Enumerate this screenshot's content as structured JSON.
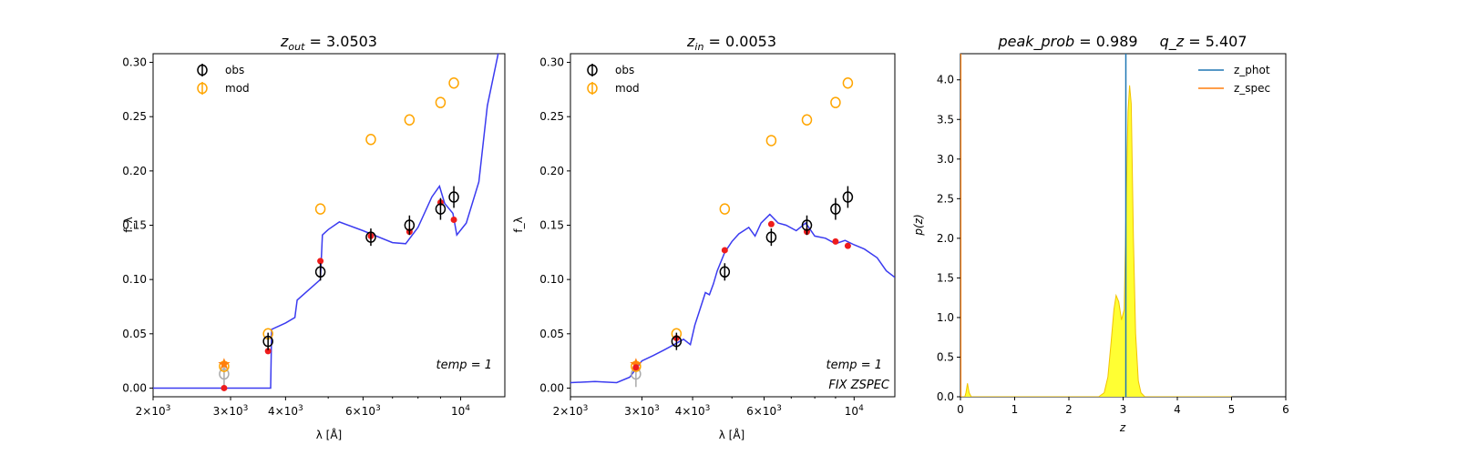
{
  "colors": {
    "model_curve": "#3b3bf0",
    "obs": "#000000",
    "mod": "#ffa500",
    "model_points": "#ee1c1c",
    "zphot_line": "#1f77b4",
    "zspec_line": "#ff7f0e",
    "pz_fill": "#ffff33",
    "upper_limit": "#aaaaaa"
  },
  "chart_data": [
    {
      "type": "scatter",
      "panel": "sed-left",
      "title_prefix": "z",
      "title_sub": "out",
      "title_rest": " = 3.0503",
      "xlabel": "λ [Å]",
      "ylabel": "f_λ",
      "x_scale": "log",
      "xlim": [
        2000,
        12600
      ],
      "ylim": [
        -0.008,
        0.308
      ],
      "xticks": [
        {
          "value": 2000,
          "mant": "2×10",
          "exp": "3"
        },
        {
          "value": 3000,
          "mant": "3×10",
          "exp": "3"
        },
        {
          "value": 4000,
          "mant": "4×10",
          "exp": "3"
        },
        {
          "value": 6000,
          "mant": "6×10",
          "exp": "3"
        },
        {
          "value": 10000,
          "mant": "10",
          "exp": "4"
        }
      ],
      "yticks": [
        "0.00",
        "0.05",
        "0.10",
        "0.15",
        "0.20",
        "0.25",
        "0.30"
      ],
      "legend": [
        "obs",
        "mod"
      ],
      "annotations": [
        "temp = 1"
      ],
      "obs": [
        {
          "x": 3650,
          "y": 0.043,
          "err": 0.008
        },
        {
          "x": 4800,
          "y": 0.107,
          "err": 0.008
        },
        {
          "x": 6250,
          "y": 0.139,
          "err": 0.008
        },
        {
          "x": 7650,
          "y": 0.15,
          "err": 0.009
        },
        {
          "x": 9000,
          "y": 0.165,
          "err": 0.01
        },
        {
          "x": 9650,
          "y": 0.176,
          "err": 0.01
        }
      ],
      "upper_limit": {
        "x": 2900,
        "y": 0.013,
        "err": 0.012
      },
      "mod": [
        {
          "x": 2900,
          "y": 0.02
        },
        {
          "x": 3650,
          "y": 0.05
        },
        {
          "x": 4800,
          "y": 0.165
        },
        {
          "x": 6250,
          "y": 0.229
        },
        {
          "x": 7650,
          "y": 0.247
        },
        {
          "x": 9000,
          "y": 0.263
        },
        {
          "x": 9650,
          "y": 0.281
        }
      ],
      "mod_star": {
        "x": 2900,
        "y": 0.022
      },
      "model_points": [
        {
          "x": 2900,
          "y": 0.0
        },
        {
          "x": 3650,
          "y": 0.034
        },
        {
          "x": 4800,
          "y": 0.117
        },
        {
          "x": 6250,
          "y": 0.14
        },
        {
          "x": 7650,
          "y": 0.144
        },
        {
          "x": 9000,
          "y": 0.171
        },
        {
          "x": 9650,
          "y": 0.155
        }
      ],
      "curve": [
        [
          2000,
          0.0
        ],
        [
          3500,
          0.0
        ],
        [
          3700,
          0.0
        ],
        [
          3720,
          0.054
        ],
        [
          4000,
          0.06
        ],
        [
          4200,
          0.065
        ],
        [
          4250,
          0.081
        ],
        [
          4800,
          0.1
        ],
        [
          4850,
          0.141
        ],
        [
          5000,
          0.146
        ],
        [
          5300,
          0.153
        ],
        [
          6000,
          0.145
        ],
        [
          7000,
          0.134
        ],
        [
          7500,
          0.133
        ],
        [
          8000,
          0.148
        ],
        [
          8600,
          0.176
        ],
        [
          8950,
          0.186
        ],
        [
          9200,
          0.17
        ],
        [
          9600,
          0.161
        ],
        [
          9800,
          0.141
        ],
        [
          10300,
          0.152
        ],
        [
          11000,
          0.19
        ],
        [
          11500,
          0.26
        ],
        [
          12200,
          0.31
        ]
      ]
    },
    {
      "type": "scatter",
      "panel": "sed-middle",
      "title_prefix": "z",
      "title_sub": "in",
      "title_rest": " = 0.0053",
      "xlabel": "λ [Å]",
      "ylabel": "f_λ",
      "x_scale": "log",
      "xlim": [
        2000,
        12600
      ],
      "ylim": [
        -0.008,
        0.308
      ],
      "xticks": [
        {
          "value": 2000,
          "mant": "2×10",
          "exp": "3"
        },
        {
          "value": 3000,
          "mant": "3×10",
          "exp": "3"
        },
        {
          "value": 4000,
          "mant": "4×10",
          "exp": "3"
        },
        {
          "value": 6000,
          "mant": "6×10",
          "exp": "3"
        },
        {
          "value": 10000,
          "mant": "10",
          "exp": "4"
        }
      ],
      "yticks": [
        "0.00",
        "0.05",
        "0.10",
        "0.15",
        "0.20",
        "0.25",
        "0.30"
      ],
      "legend": [
        "obs",
        "mod"
      ],
      "annotations": [
        "temp = 1",
        "FIX ZSPEC"
      ],
      "obs": [
        {
          "x": 3650,
          "y": 0.043,
          "err": 0.008
        },
        {
          "x": 4800,
          "y": 0.107,
          "err": 0.008
        },
        {
          "x": 6250,
          "y": 0.139,
          "err": 0.008
        },
        {
          "x": 7650,
          "y": 0.15,
          "err": 0.009
        },
        {
          "x": 9000,
          "y": 0.165,
          "err": 0.01
        },
        {
          "x": 9650,
          "y": 0.176,
          "err": 0.01
        }
      ],
      "upper_limit": {
        "x": 2900,
        "y": 0.013,
        "err": 0.012
      },
      "mod": [
        {
          "x": 2900,
          "y": 0.02
        },
        {
          "x": 3650,
          "y": 0.05
        },
        {
          "x": 4800,
          "y": 0.165
        },
        {
          "x": 6250,
          "y": 0.228
        },
        {
          "x": 7650,
          "y": 0.247
        },
        {
          "x": 9000,
          "y": 0.263
        },
        {
          "x": 9650,
          "y": 0.281
        }
      ],
      "mod_star": {
        "x": 2900,
        "y": 0.022
      },
      "model_points": [
        {
          "x": 2900,
          "y": 0.019
        },
        {
          "x": 3650,
          "y": 0.046
        },
        {
          "x": 4800,
          "y": 0.127
        },
        {
          "x": 6250,
          "y": 0.151
        },
        {
          "x": 7650,
          "y": 0.144
        },
        {
          "x": 9000,
          "y": 0.135
        },
        {
          "x": 9650,
          "y": 0.131
        }
      ],
      "curve": [
        [
          2000,
          0.005
        ],
        [
          2300,
          0.006
        ],
        [
          2600,
          0.005
        ],
        [
          2800,
          0.01
        ],
        [
          3000,
          0.025
        ],
        [
          3200,
          0.03
        ],
        [
          3400,
          0.035
        ],
        [
          3600,
          0.04
        ],
        [
          3800,
          0.045
        ],
        [
          3950,
          0.04
        ],
        [
          4050,
          0.058
        ],
        [
          4150,
          0.07
        ],
        [
          4300,
          0.088
        ],
        [
          4400,
          0.086
        ],
        [
          4500,
          0.096
        ],
        [
          4600,
          0.108
        ],
        [
          4800,
          0.125
        ],
        [
          5000,
          0.135
        ],
        [
          5200,
          0.142
        ],
        [
          5500,
          0.148
        ],
        [
          5700,
          0.14
        ],
        [
          5900,
          0.152
        ],
        [
          6200,
          0.16
        ],
        [
          6500,
          0.152
        ],
        [
          6800,
          0.15
        ],
        [
          7200,
          0.145
        ],
        [
          7600,
          0.152
        ],
        [
          8000,
          0.14
        ],
        [
          8500,
          0.138
        ],
        [
          9000,
          0.133
        ],
        [
          9500,
          0.136
        ],
        [
          10000,
          0.132
        ],
        [
          10600,
          0.128
        ],
        [
          11400,
          0.12
        ],
        [
          12000,
          0.108
        ],
        [
          12600,
          0.102
        ]
      ]
    },
    {
      "type": "area",
      "panel": "pz",
      "title_a": "peak_prob",
      "title_a_rest": " = 0.989",
      "title_b": "q_z",
      "title_b_rest": " = 5.407",
      "xlabel": "z",
      "ylabel": "p(z)",
      "xlim": [
        0,
        6
      ],
      "ylim": [
        0,
        4.33
      ],
      "xticks": [
        "0",
        "1",
        "2",
        "3",
        "4",
        "5",
        "6"
      ],
      "yticks": [
        "0.0",
        "0.5",
        "1.0",
        "1.5",
        "2.0",
        "2.5",
        "3.0",
        "3.5",
        "4.0"
      ],
      "legend": [
        "z_phot",
        "z_spec"
      ],
      "z_phot": 3.0503,
      "z_spec": 0.0053,
      "pz": [
        [
          0.0,
          0.0
        ],
        [
          0.08,
          0.0
        ],
        [
          0.1,
          0.05
        ],
        [
          0.13,
          0.17
        ],
        [
          0.16,
          0.05
        ],
        [
          0.2,
          0.0
        ],
        [
          2.55,
          0.0
        ],
        [
          2.65,
          0.05
        ],
        [
          2.72,
          0.25
        ],
        [
          2.78,
          0.7
        ],
        [
          2.83,
          1.1
        ],
        [
          2.87,
          1.28
        ],
        [
          2.92,
          1.2
        ],
        [
          2.97,
          0.97
        ],
        [
          3.02,
          1.1
        ],
        [
          3.06,
          2.6
        ],
        [
          3.09,
          3.6
        ],
        [
          3.12,
          3.93
        ],
        [
          3.15,
          3.7
        ],
        [
          3.19,
          2.0
        ],
        [
          3.23,
          0.8
        ],
        [
          3.28,
          0.2
        ],
        [
          3.33,
          0.05
        ],
        [
          3.4,
          0.0
        ],
        [
          5.0,
          0.0
        ]
      ]
    }
  ]
}
